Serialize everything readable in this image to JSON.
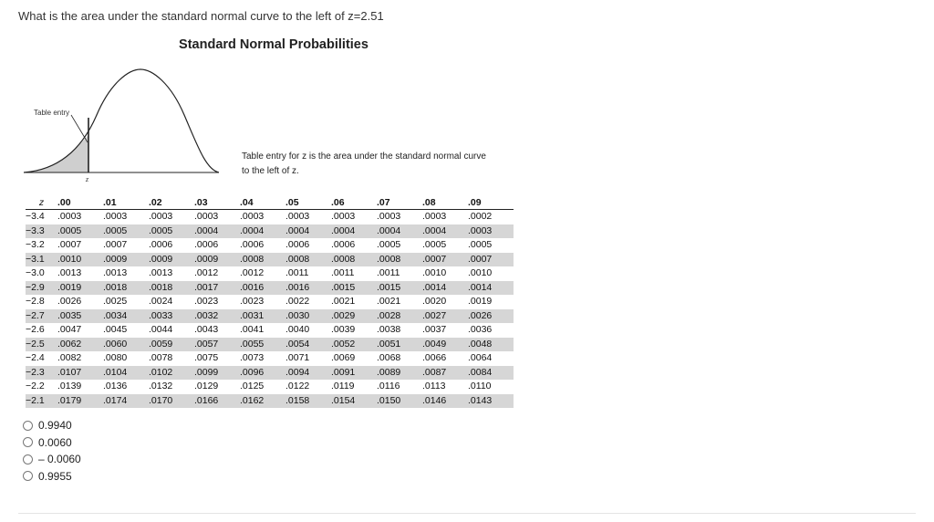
{
  "question": "What is the area under the standard normal curve to the left of z=2.51",
  "figure": {
    "title": "Standard Normal Probabilities",
    "table_entry_label": "Table entry",
    "z_label": "z",
    "note_line1": "Table entry for z is the area under the standard normal curve",
    "note_line2": "to the left of z."
  },
  "table": {
    "z_header": "z",
    "columns": [
      ".00",
      ".01",
      ".02",
      ".03",
      ".04",
      ".05",
      ".06",
      ".07",
      ".08",
      ".09"
    ],
    "rows": [
      {
        "z": "−3.4",
        "values": [
          ".0003",
          ".0003",
          ".0003",
          ".0003",
          ".0003",
          ".0003",
          ".0003",
          ".0003",
          ".0003",
          ".0002"
        ]
      },
      {
        "z": "−3.3",
        "values": [
          ".0005",
          ".0005",
          ".0005",
          ".0004",
          ".0004",
          ".0004",
          ".0004",
          ".0004",
          ".0004",
          ".0003"
        ]
      },
      {
        "z": "−3.2",
        "values": [
          ".0007",
          ".0007",
          ".0006",
          ".0006",
          ".0006",
          ".0006",
          ".0006",
          ".0005",
          ".0005",
          ".0005"
        ]
      },
      {
        "z": "−3.1",
        "values": [
          ".0010",
          ".0009",
          ".0009",
          ".0009",
          ".0008",
          ".0008",
          ".0008",
          ".0008",
          ".0007",
          ".0007"
        ]
      },
      {
        "z": "−3.0",
        "values": [
          ".0013",
          ".0013",
          ".0013",
          ".0012",
          ".0012",
          ".0011",
          ".0011",
          ".0011",
          ".0010",
          ".0010"
        ]
      },
      {
        "z": "−2.9",
        "values": [
          ".0019",
          ".0018",
          ".0018",
          ".0017",
          ".0016",
          ".0016",
          ".0015",
          ".0015",
          ".0014",
          ".0014"
        ]
      },
      {
        "z": "−2.8",
        "values": [
          ".0026",
          ".0025",
          ".0024",
          ".0023",
          ".0023",
          ".0022",
          ".0021",
          ".0021",
          ".0020",
          ".0019"
        ]
      },
      {
        "z": "−2.7",
        "values": [
          ".0035",
          ".0034",
          ".0033",
          ".0032",
          ".0031",
          ".0030",
          ".0029",
          ".0028",
          ".0027",
          ".0026"
        ]
      },
      {
        "z": "−2.6",
        "values": [
          ".0047",
          ".0045",
          ".0044",
          ".0043",
          ".0041",
          ".0040",
          ".0039",
          ".0038",
          ".0037",
          ".0036"
        ]
      },
      {
        "z": "−2.5",
        "values": [
          ".0062",
          ".0060",
          ".0059",
          ".0057",
          ".0055",
          ".0054",
          ".0052",
          ".0051",
          ".0049",
          ".0048"
        ]
      },
      {
        "z": "−2.4",
        "values": [
          ".0082",
          ".0080",
          ".0078",
          ".0075",
          ".0073",
          ".0071",
          ".0069",
          ".0068",
          ".0066",
          ".0064"
        ]
      },
      {
        "z": "−2.3",
        "values": [
          ".0107",
          ".0104",
          ".0102",
          ".0099",
          ".0096",
          ".0094",
          ".0091",
          ".0089",
          ".0087",
          ".0084"
        ]
      },
      {
        "z": "−2.2",
        "values": [
          ".0139",
          ".0136",
          ".0132",
          ".0129",
          ".0125",
          ".0122",
          ".0119",
          ".0116",
          ".0113",
          ".0110"
        ]
      },
      {
        "z": "−2.1",
        "values": [
          ".0179",
          ".0174",
          ".0170",
          ".0166",
          ".0162",
          ".0158",
          ".0154",
          ".0150",
          ".0146",
          ".0143"
        ]
      }
    ]
  },
  "options": [
    "0.9940",
    "0.0060",
    "– 0.0060",
    "0.9955"
  ]
}
